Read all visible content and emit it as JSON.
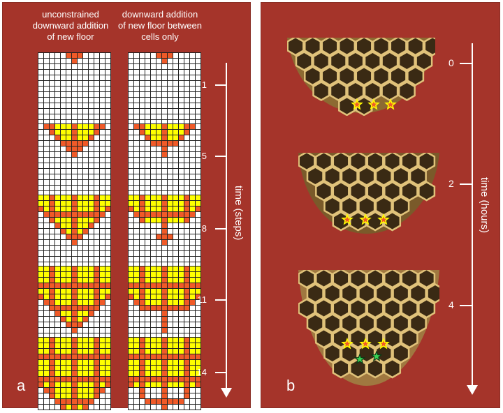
{
  "colors": {
    "background": "#a5342a",
    "empty_cell": "#ffffff",
    "floor_cell": "#ffff00",
    "wall_cell": "#f05a28",
    "star_existing": "#f05a28",
    "star_new": "#39d353",
    "wax": "#b58a4a"
  },
  "panel_a": {
    "label": "a",
    "headers": {
      "unconstrained": "unconstrained downward addition of new floor",
      "between_cells": "downward addition of new floor between cells only"
    },
    "axis_title": "time (steps)",
    "steps": [
      "1",
      "5",
      "8",
      "11",
      "14"
    ]
  },
  "panel_b": {
    "label": "b",
    "axis_title": "time (hours)",
    "hours": [
      "0",
      "2",
      "4"
    ],
    "stars_per_snapshot": [
      {
        "existing": 3,
        "new": 0
      },
      {
        "existing": 3,
        "new": 0
      },
      {
        "existing": 3,
        "new": 2
      }
    ]
  }
}
